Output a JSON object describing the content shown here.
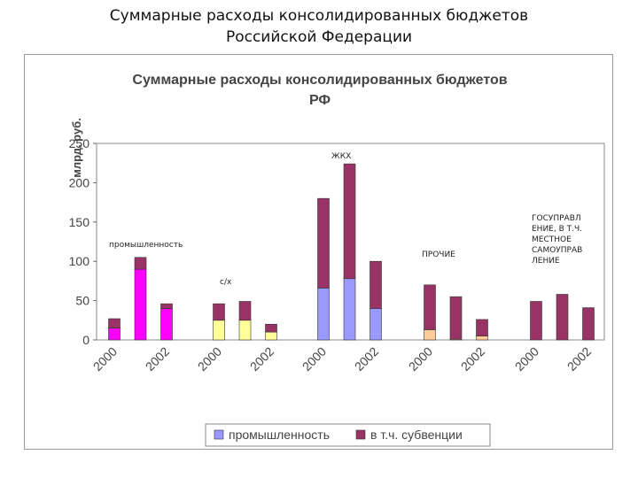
{
  "slide": {
    "title_line1": "Суммарные расходы консолидированных бюджетов",
    "title_line2": "Российской Федерации"
  },
  "chart_data": {
    "type": "bar",
    "stacked": true,
    "title_line1": "Суммарные расходы консолидированных бюджетов",
    "title_line2": "РФ",
    "ylabel": "млрд. руб.",
    "ylim": [
      0,
      250
    ],
    "yticks": [
      0,
      50,
      100,
      150,
      200,
      250
    ],
    "grid": false,
    "legend_position": "bottom",
    "groups": [
      {
        "annotation": "промышленность",
        "base_color": "#ff00ff",
        "x": [
          "2000",
          "2001",
          "2002"
        ],
        "base": [
          15,
          90,
          40
        ],
        "subsidy": [
          12,
          15,
          6
        ]
      },
      {
        "annotation": "с/х",
        "base_color": "#ffff99",
        "x": [
          "2000",
          "2001",
          "2002"
        ],
        "base": [
          25,
          25,
          10
        ],
        "subsidy": [
          21,
          24,
          10
        ]
      },
      {
        "annotation": "ЖКХ",
        "base_color": "#9999ff",
        "x": [
          "2000",
          "2001",
          "2002"
        ],
        "base": [
          66,
          78,
          40
        ],
        "subsidy": [
          114,
          146,
          60
        ]
      },
      {
        "annotation": "ПРОЧИЕ",
        "base_color": "#ffcc99",
        "x": [
          "2000",
          "2001",
          "2002"
        ],
        "base": [
          13,
          1,
          5
        ],
        "subsidy": [
          57,
          54,
          21
        ]
      },
      {
        "annotation": "ГОСУПРАВЛ ЕНИЕ, В Т.Ч. МЕСТНОЕ САМОУПРАВ ЛЕНИЕ",
        "base_color": "#993366",
        "x": [
          "2000",
          "2001",
          "2002"
        ],
        "base": [
          0,
          0,
          0
        ],
        "subsidy": [
          49,
          58,
          41
        ]
      }
    ],
    "xtick_labels_shown": [
      "2000",
      "2002"
    ],
    "subsidy_color": "#993366",
    "legend": [
      {
        "label": "промышленность",
        "color": "#9999ff"
      },
      {
        "label": "в т.ч. субвенции",
        "color": "#993366"
      }
    ]
  }
}
